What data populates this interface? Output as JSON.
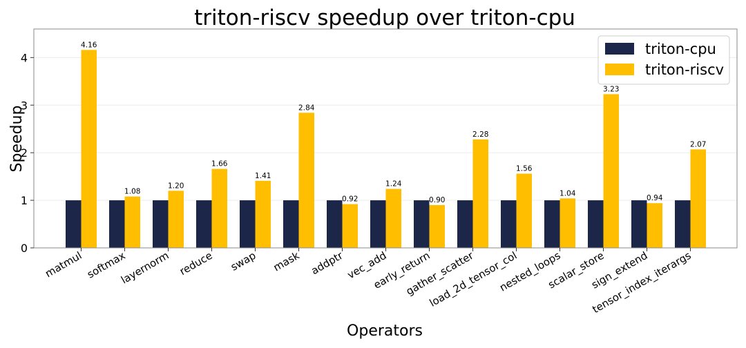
{
  "chart_data": {
    "type": "bar",
    "title": "triton-riscv speedup over triton-cpu",
    "xlabel": "Operators",
    "ylabel": "Speedup",
    "ylim": [
      0,
      4.6
    ],
    "yticks": [
      0,
      1,
      2,
      3,
      4
    ],
    "grid": true,
    "legend_position": "top-right",
    "categories": [
      "matmul",
      "softmax",
      "layernorm",
      "reduce",
      "swap",
      "mask",
      "addptr",
      "vec_add",
      "early_return",
      "gather_scatter",
      "load_2d_tensor_col",
      "nested_loops",
      "scalar_store",
      "sign_extend",
      "tensor_index_iterargs"
    ],
    "series": [
      {
        "name": "triton-cpu",
        "color": "#1b2649",
        "values": [
          1,
          1,
          1,
          1,
          1,
          1,
          1,
          1,
          1,
          1,
          1,
          1,
          1,
          1,
          1
        ],
        "labels": []
      },
      {
        "name": "triton-riscv",
        "color": "#ffbf00",
        "values": [
          4.16,
          1.08,
          1.2,
          1.66,
          1.41,
          2.84,
          0.92,
          1.24,
          0.9,
          2.28,
          1.56,
          1.04,
          3.23,
          0.94,
          2.07
        ],
        "labels": [
          "4.16",
          "1.08",
          "1.20",
          "1.66",
          "1.41",
          "2.84",
          "0.92",
          "1.24",
          "0.90",
          "2.28",
          "1.56",
          "1.04",
          "3.23",
          "0.94",
          "2.07"
        ]
      }
    ]
  }
}
